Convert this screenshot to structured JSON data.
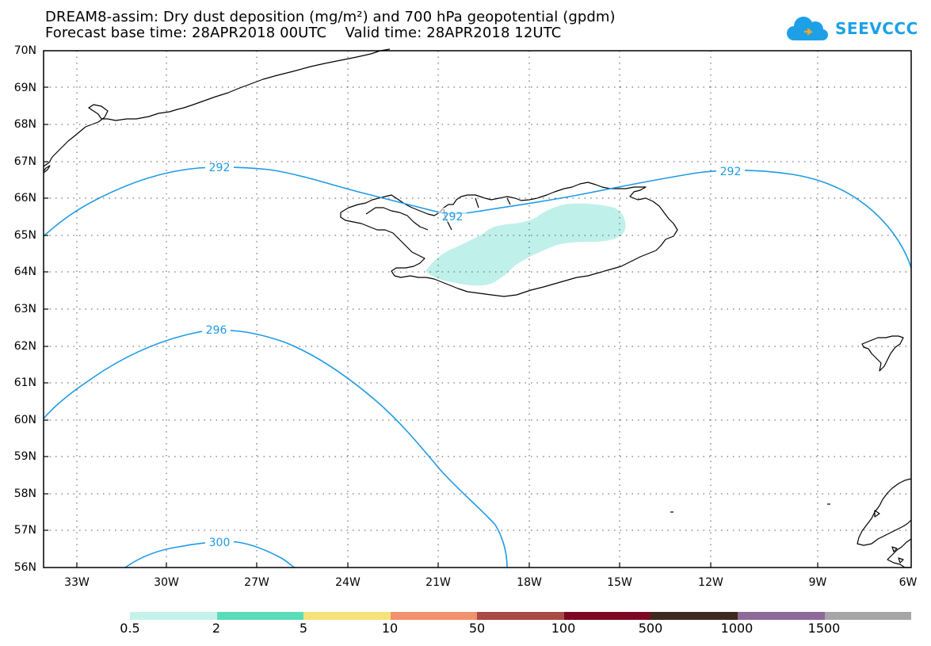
{
  "header": {
    "title_line1": "DREAM8-assim: Dry dust deposition (mg/m²) and 700 hPa geopotential (gpdm)",
    "title_line2": "Forecast base time: 28APR2018 00UTC    Valid time: 28APR2018 12UTC",
    "logo_text": "SEEVCCC",
    "logo_icon": "cloud-icon"
  },
  "map": {
    "projection": "lat-lon",
    "extent": {
      "lon_min": -34.5,
      "lon_max": -6,
      "lat_min": 56,
      "lat_max": 70
    },
    "lat_labels": [
      "70N",
      "69N",
      "68N",
      "67N",
      "66N",
      "65N",
      "64N",
      "63N",
      "62N",
      "61N",
      "60N",
      "59N",
      "58N",
      "57N",
      "56N"
    ],
    "lon_labels": [
      "33W",
      "30W",
      "27W",
      "24W",
      "21W",
      "18W",
      "15W",
      "12W",
      "9W",
      "6W"
    ],
    "gridlines": "dotted",
    "contour_color": "#1e9be6",
    "contours": [
      {
        "value": "292",
        "label_1": "292",
        "label_2": "292",
        "label_3": "292"
      },
      {
        "value": "296",
        "label_1": "296"
      },
      {
        "value": "300",
        "label_1": "300"
      }
    ],
    "dust_fill_color": "#c0f0ea",
    "dust_region": "Iceland south-west to central"
  },
  "colorbar": {
    "colors": [
      "#c4f2ea",
      "#5adcb8",
      "#f7e27a",
      "#f0926e",
      "#a84b45",
      "#7d0824",
      "#3d2a1e",
      "#8d6a99",
      "#a6a6a6"
    ],
    "labels": [
      "0.5",
      "2",
      "5",
      "10",
      "50",
      "100",
      "500",
      "1000",
      "1500"
    ]
  }
}
